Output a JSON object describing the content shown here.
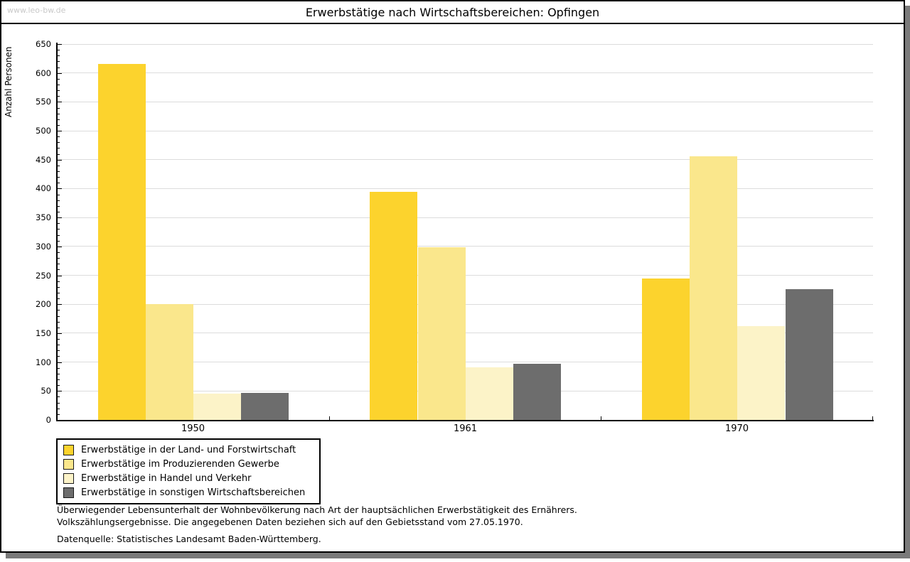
{
  "watermark": "www.leo-bw.de",
  "title": "Erwerbstätige nach Wirtschaftsbereichen: Opfingen",
  "chart_data": {
    "type": "bar",
    "title": "Erwerbstätige nach Wirtschaftsbereichen: Opfingen",
    "xlabel": "",
    "ylabel": "Anzahl Personen",
    "ylim": [
      0,
      650
    ],
    "ytick_major_step": 50,
    "ytick_minor_step": 10,
    "grid": "horizontal-major",
    "legend_position": "below-left",
    "categories": [
      "1950",
      "1961",
      "1970"
    ],
    "series": [
      {
        "name": "Erwerbstätige in der Land- und Forstwirtschaft",
        "color": "#fcd32d",
        "values": [
          615,
          394,
          245
        ]
      },
      {
        "name": "Erwerbstätige im Produzierenden Gewerbe",
        "color": "#fae78c",
        "values": [
          200,
          299,
          456
        ]
      },
      {
        "name": "Erwerbstätige in Handel und Verkehr",
        "color": "#fcf3c8",
        "values": [
          45,
          91,
          162
        ]
      },
      {
        "name": "Erwerbstätige in sonstigen Wirtschaftsbereichen",
        "color": "#6d6d6d",
        "values": [
          47,
          97,
          226
        ]
      }
    ]
  },
  "footnotes": [
    "Überwiegender Lebensunterhalt der Wohnbevölkerung nach Art der hauptsächlichen Erwerbstätigkeit des Ernährers.",
    "Volkszählungsergebnisse. Die angegebenen Daten beziehen sich auf den Gebietsstand vom 27.05.1970."
  ],
  "source": "Datenquelle: Statistisches Landesamt Baden-Württemberg."
}
